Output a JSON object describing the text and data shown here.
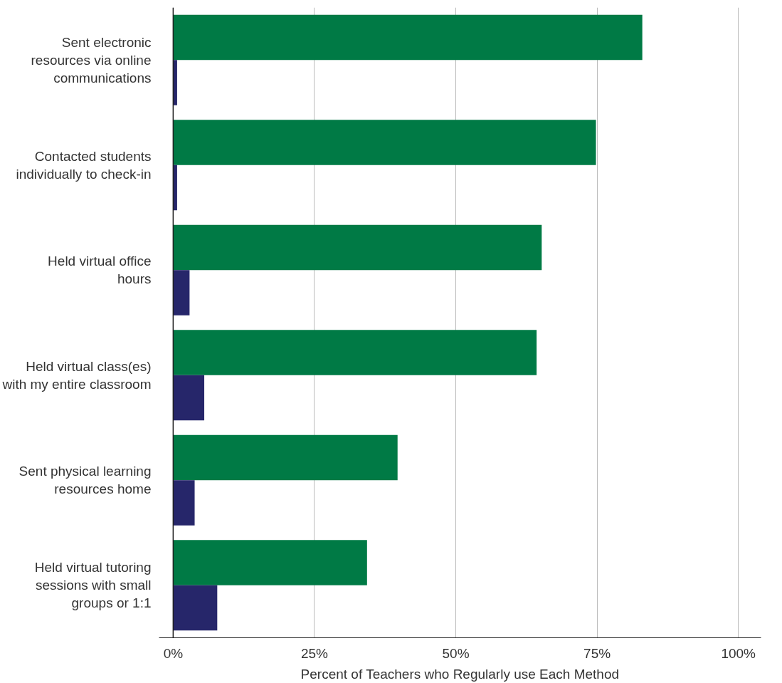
{
  "chart_data": {
    "type": "bar",
    "orientation": "horizontal",
    "xlabel": "Percent of Teachers who Regularly use Each Method",
    "categories": [
      "Sent electronic resources via online communications",
      "Contacted students individually to check-in",
      "Held virtual office hours",
      "Held virtual class(es) with my entire classroom",
      "Sent physical learning resources home",
      "Held virtual tutoring sessions with small groups or 1:1"
    ],
    "series": [
      {
        "color": "#007a45",
        "values": [
          83.0,
          74.8,
          65.2,
          64.3,
          39.7,
          34.3
        ]
      },
      {
        "color": "#26266a",
        "values": [
          0.7,
          0.7,
          2.9,
          5.5,
          3.8,
          7.8
        ]
      }
    ],
    "xlim": [
      -2.5,
      104
    ],
    "xticks": [
      {
        "value": 0,
        "label": "0%"
      },
      {
        "value": 25,
        "label": "25%"
      },
      {
        "value": 50,
        "label": "50%"
      },
      {
        "value": 75,
        "label": "75%"
      },
      {
        "value": 100,
        "label": "100%"
      }
    ],
    "grid": "x"
  }
}
